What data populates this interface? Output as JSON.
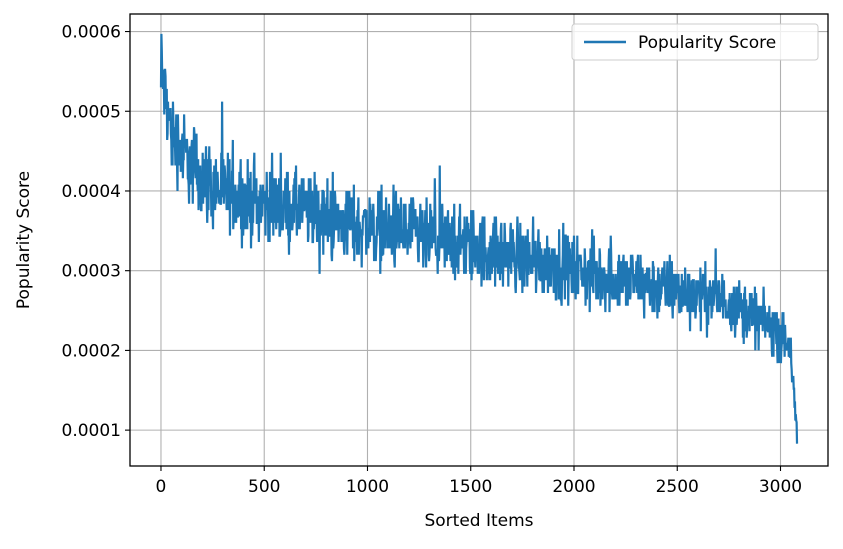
{
  "chart_data": {
    "type": "line",
    "title": "",
    "xlabel": "Sorted Items",
    "ylabel": "Popularity Score",
    "xlim": [
      -150,
      3230
    ],
    "ylim": [
      5.5e-05,
      0.000622
    ],
    "xticks": [
      0,
      500,
      1000,
      1500,
      2000,
      2500,
      3000
    ],
    "xtick_labels": [
      "0",
      "500",
      "1000",
      "1500",
      "2000",
      "2500",
      "3000"
    ],
    "yticks": [
      0.0001,
      0.0002,
      0.0003,
      0.0004,
      0.0005,
      0.0006
    ],
    "ytick_labels": [
      "0.0001",
      "0.0002",
      "0.0003",
      "0.0004",
      "0.0005",
      "0.0006"
    ],
    "grid": true,
    "legend": {
      "position": "top-right",
      "entries": [
        "Popularity Score"
      ]
    },
    "series": [
      {
        "name": "Popularity Score",
        "color": "#1f77b4",
        "x_range": [
          0,
          3080
        ],
        "trend": {
          "x": [
            0,
            50,
            100,
            150,
            200,
            250,
            300,
            400,
            500,
            600,
            700,
            800,
            900,
            1000,
            1100,
            1200,
            1300,
            1400,
            1500,
            1600,
            1700,
            1800,
            1900,
            2000,
            2100,
            2200,
            2300,
            2400,
            2500,
            2600,
            2700,
            2800,
            2900,
            3000,
            3050,
            3080
          ],
          "y": [
            0.00055,
            0.00047,
            0.00045,
            0.00043,
            0.00042,
            0.000405,
            0.0004,
            0.00039,
            0.000385,
            0.00038,
            0.000375,
            0.000365,
            0.00036,
            0.000355,
            0.00035,
            0.000345,
            0.00034,
            0.000335,
            0.00033,
            0.000325,
            0.00032,
            0.000315,
            0.00031,
            0.0003,
            0.000295,
            0.00029,
            0.000285,
            0.00028,
            0.000275,
            0.00027,
            0.000265,
            0.000255,
            0.00024,
            0.00022,
            0.0002,
            8.5e-05
          ]
        },
        "spread": {
          "x": [
            0,
            100,
            500,
            1500,
            2500,
            3000,
            3080
          ],
          "y": [
            7e-05,
            8e-05,
            7e-05,
            7e-05,
            6e-05,
            5e-05,
            3e-05
          ]
        },
        "extremes": {
          "max": 0.000597,
          "min": 8.3e-05
        }
      }
    ]
  }
}
